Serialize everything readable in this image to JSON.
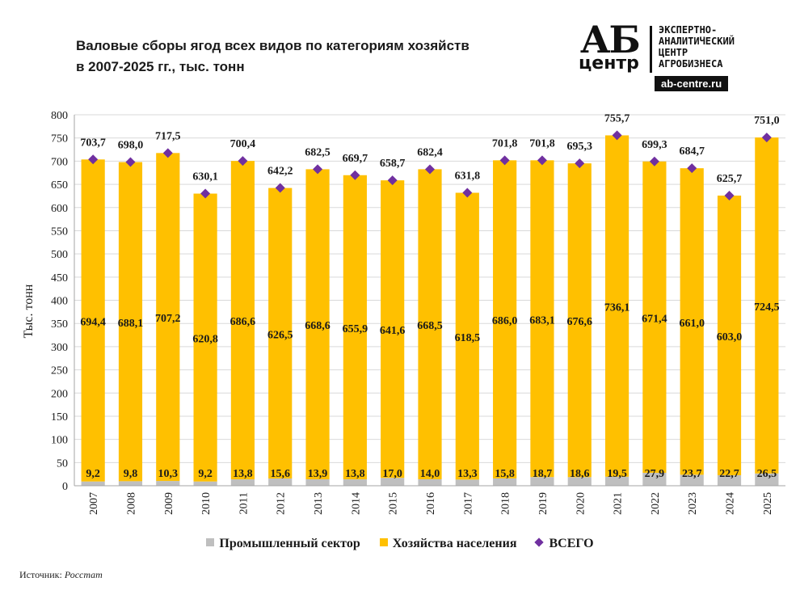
{
  "title_line1": "Валовые сборы ягод всех видов по категориям хозяйств",
  "title_line2": "в 2007-2025 гг., тыс. тонн",
  "logo": {
    "mark_top": "АБ",
    "mark_bottom": "центр",
    "line1": "ЭКСПЕРТНО-",
    "line2": "АНАЛИТИЧЕСКИЙ",
    "line3": "ЦЕНТР",
    "line4": "АГРОБИЗНЕСА",
    "url": "ab-centre.ru"
  },
  "source_label": "Источник:",
  "source_value": "Росстат",
  "colors": {
    "industrial": "#bfbfbf",
    "households": "#ffc000",
    "total": "#7030a0",
    "grid": "#d9d9d9"
  },
  "chart_data": {
    "type": "bar",
    "stacked": true,
    "title": "Валовые сборы ягод всех видов по категориям хозяйств в 2007-2025 гг., тыс. тонн",
    "ylabel": "Тыс. тонн",
    "xlabel": "",
    "ylim": [
      0,
      800
    ],
    "yticks": [
      "0",
      "50",
      "100",
      "150",
      "200",
      "250",
      "300",
      "350",
      "400",
      "450",
      "500",
      "550",
      "600",
      "650",
      "700",
      "750",
      "800"
    ],
    "grid": true,
    "legend_position": "bottom",
    "categories": [
      "2007",
      "2008",
      "2009",
      "2010",
      "2011",
      "2012",
      "2013",
      "2014",
      "2015",
      "2016",
      "2017",
      "2018",
      "2019",
      "2020",
      "2021",
      "2022",
      "2023",
      "2024",
      "2025"
    ],
    "series": [
      {
        "name": "Промышленный сектор",
        "kind": "bar",
        "values": [
          9.2,
          9.8,
          10.3,
          9.2,
          13.8,
          15.6,
          13.9,
          13.8,
          17.0,
          14.0,
          13.3,
          15.8,
          18.7,
          18.6,
          19.5,
          27.9,
          23.7,
          22.7,
          26.5
        ],
        "labels": [
          "9,2",
          "9,8",
          "10,3",
          "9,2",
          "13,8",
          "15,6",
          "13,9",
          "13,8",
          "17,0",
          "14,0",
          "13,3",
          "15,8",
          "18,7",
          "18,6",
          "19,5",
          "27,9",
          "23,7",
          "22,7",
          "26,5"
        ]
      },
      {
        "name": "Хозяйства населения",
        "kind": "bar",
        "values": [
          694.4,
          688.1,
          707.2,
          620.8,
          686.6,
          626.5,
          668.6,
          655.9,
          641.6,
          668.5,
          618.5,
          686.0,
          683.1,
          676.6,
          736.1,
          671.4,
          661.0,
          603.0,
          724.5
        ],
        "labels": [
          "694,4",
          "688,1",
          "707,2",
          "620,8",
          "686,6",
          "626,5",
          "668,6",
          "655,9",
          "641,6",
          "668,5",
          "618,5",
          "686,0",
          "683,1",
          "676,6",
          "736,1",
          "671,4",
          "661,0",
          "603,0",
          "724,5"
        ]
      },
      {
        "name": "ВСЕГО",
        "kind": "marker",
        "values": [
          703.7,
          698.0,
          717.5,
          630.1,
          700.4,
          642.2,
          682.5,
          669.7,
          658.7,
          682.4,
          631.8,
          701.8,
          701.8,
          695.3,
          755.7,
          699.3,
          684.7,
          625.7,
          751.0
        ],
        "labels": [
          "703,7",
          "698,0",
          "717,5",
          "630,1",
          "700,4",
          "642,2",
          "682,5",
          "669,7",
          "658,7",
          "682,4",
          "631,8",
          "701,8",
          "701,8",
          "695,3",
          "755,7",
          "699,3",
          "684,7",
          "625,7",
          "751,0"
        ]
      }
    ]
  }
}
